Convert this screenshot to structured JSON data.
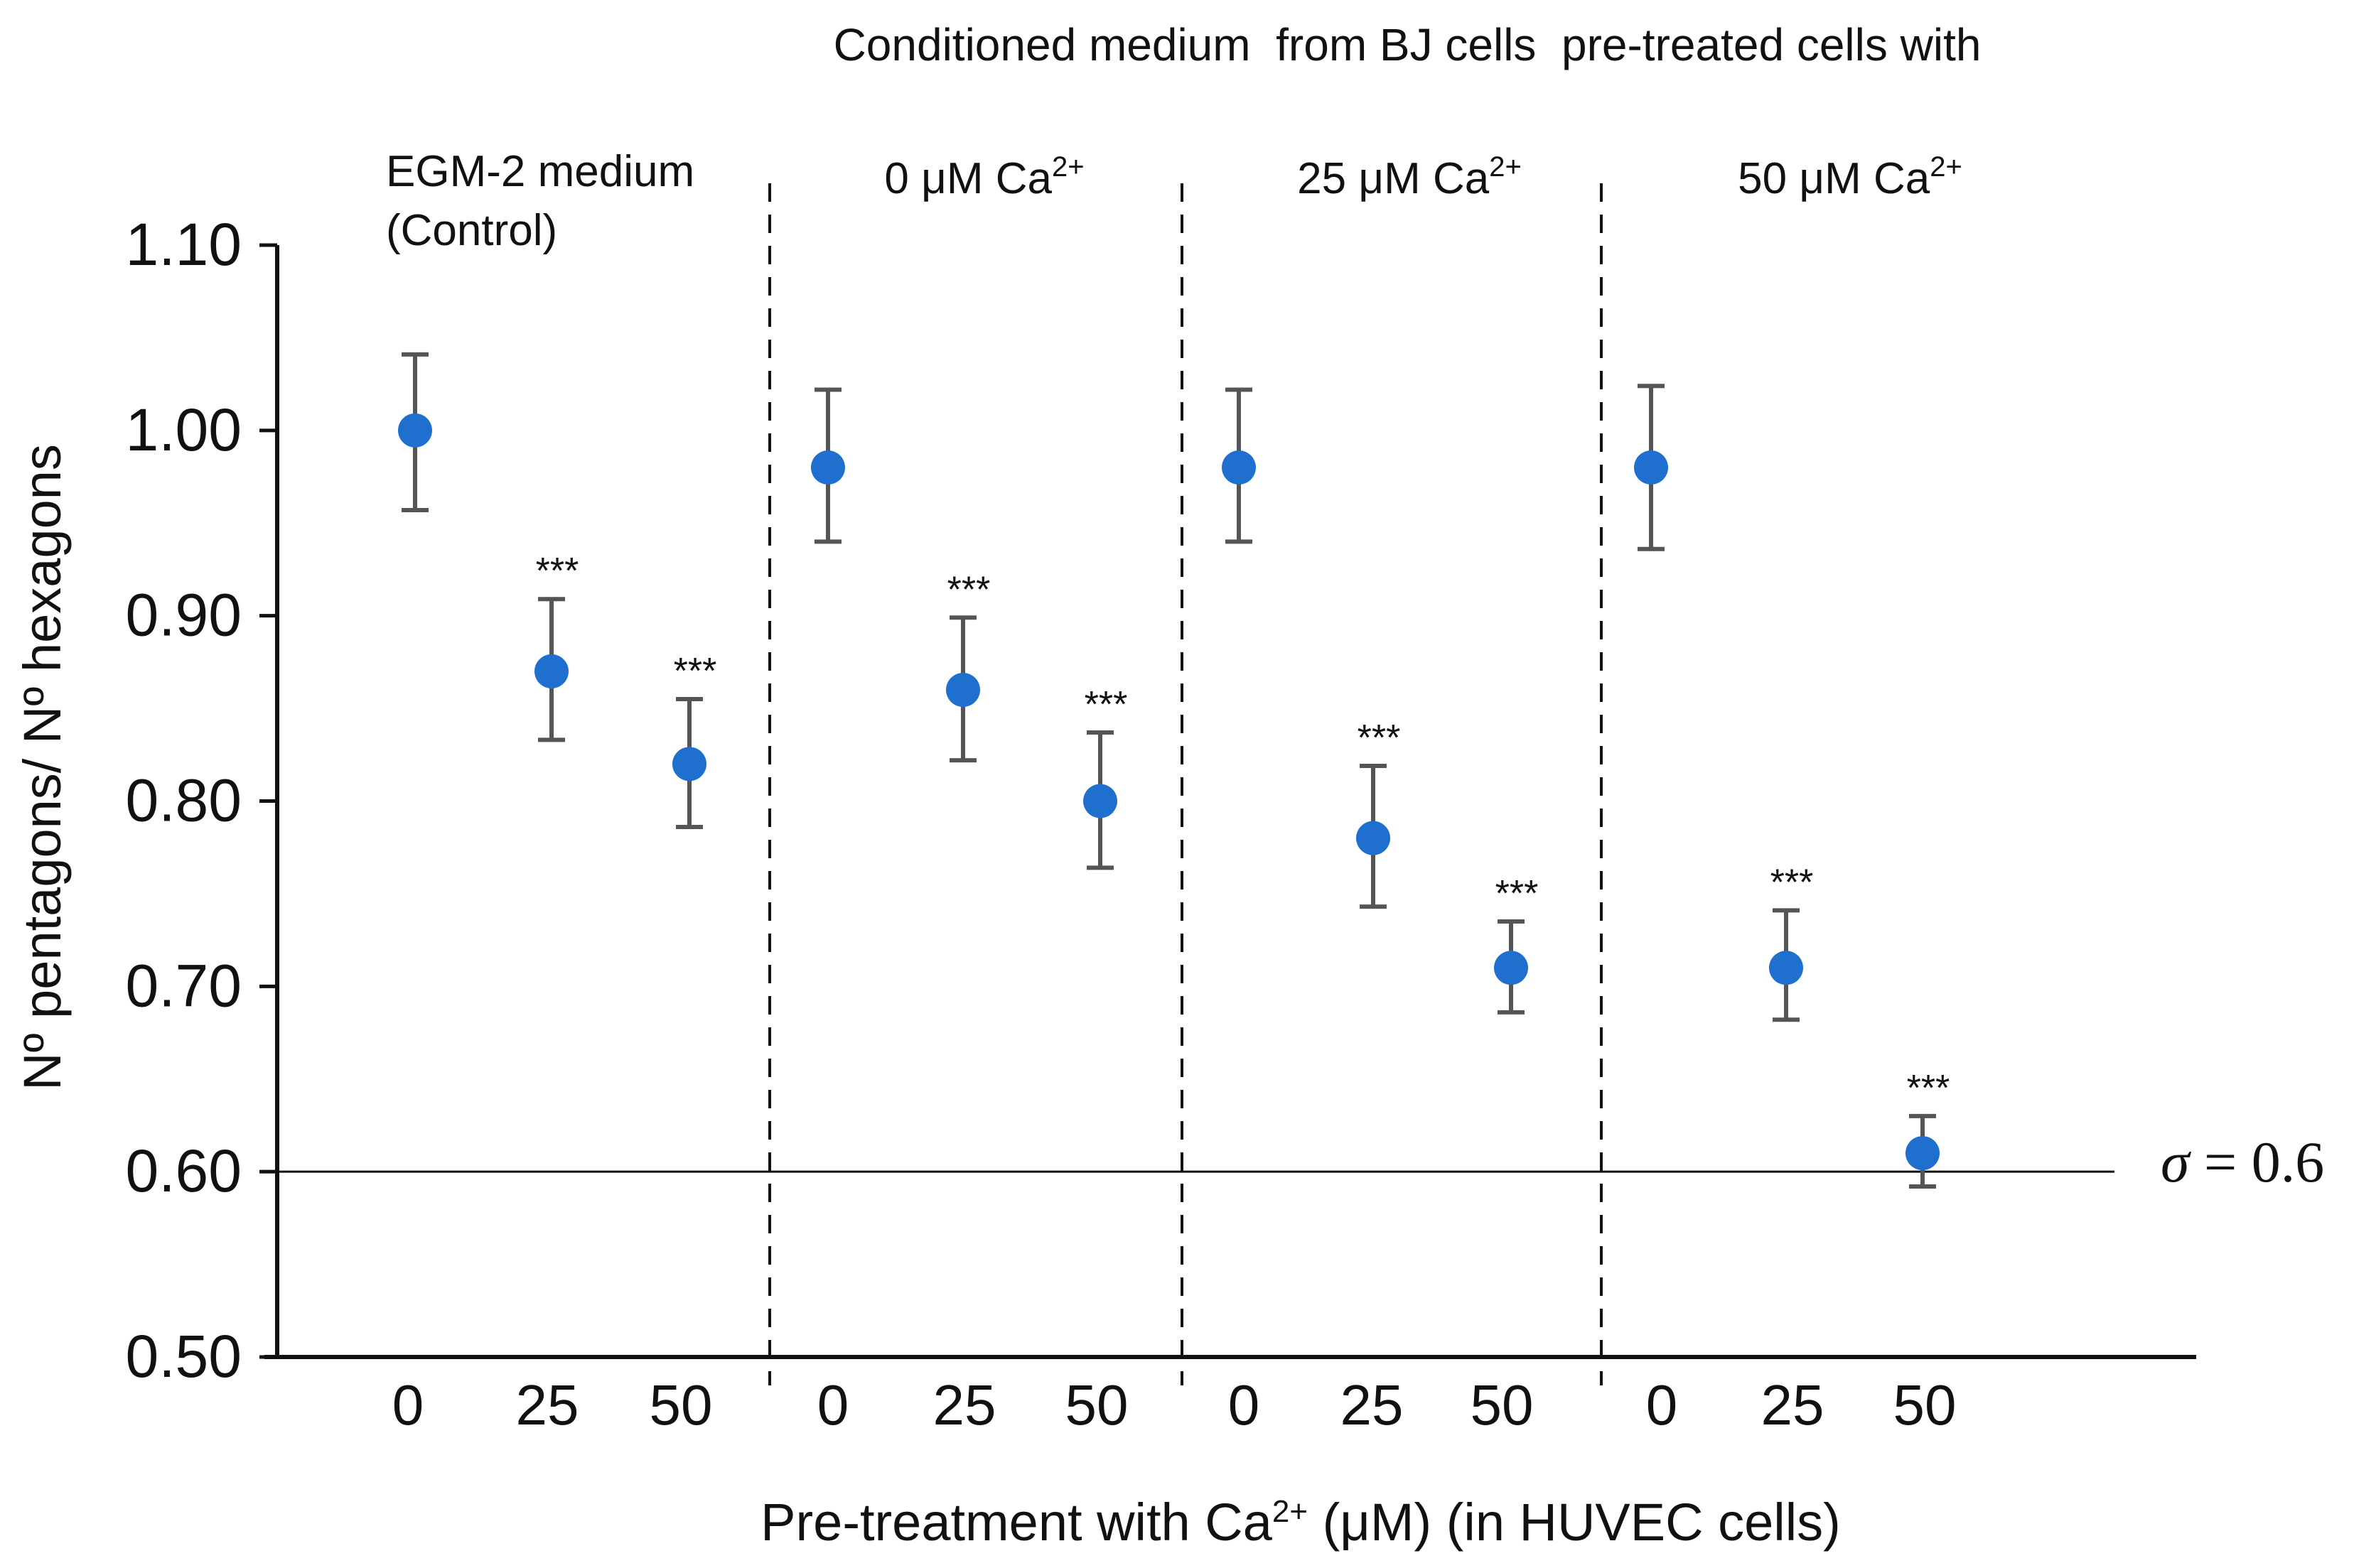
{
  "chart_data": {
    "type": "scatter",
    "title": "Conditioned medium  from BJ cells  pre-treated cells with",
    "xlabel_parts": [
      "Pre-treatment with Ca",
      "2+",
      " (μM) (in HUVEC cells)"
    ],
    "ylabel": "Nº pentagons/ Nº hexagons",
    "ylim": [
      0.5,
      1.1
    ],
    "yticks": [
      "0.50",
      "0.60",
      "0.70",
      "0.80",
      "0.90",
      "1.00",
      "1.10"
    ],
    "ytick_values": [
      0.5,
      0.6,
      0.7,
      0.8,
      0.9,
      1.0,
      1.1
    ],
    "reference_line": {
      "value": 0.6,
      "symbol": "σ",
      "label": " = 0.6"
    },
    "marker_color": "#1f6fcf",
    "errorbar_color": "#555555",
    "groups": [
      {
        "label_lines": [
          "EGM-2 medium",
          "(Control)"
        ],
        "label_main": "",
        "label_sup": "",
        "points": [
          {
            "x": "0",
            "y": 1.0,
            "err_low": 0.957,
            "err_high": 1.041,
            "sig": ""
          },
          {
            "x": "25",
            "y": 0.87,
            "err_low": 0.833,
            "err_high": 0.909,
            "sig": "***"
          },
          {
            "x": "50",
            "y": 0.82,
            "err_low": 0.786,
            "err_high": 0.855,
            "sig": "***"
          }
        ]
      },
      {
        "label_lines": [],
        "label_main": "0 μM  Ca",
        "label_sup": "2+",
        "points": [
          {
            "x": "0",
            "y": 0.98,
            "err_low": 0.94,
            "err_high": 1.022,
            "sig": ""
          },
          {
            "x": "25",
            "y": 0.86,
            "err_low": 0.822,
            "err_high": 0.899,
            "sig": "***"
          },
          {
            "x": "50",
            "y": 0.8,
            "err_low": 0.764,
            "err_high": 0.837,
            "sig": "***"
          }
        ]
      },
      {
        "label_lines": [],
        "label_main": "25 μM  Ca",
        "label_sup": "2+",
        "points": [
          {
            "x": "0",
            "y": 0.98,
            "err_low": 0.94,
            "err_high": 1.022,
            "sig": ""
          },
          {
            "x": "25",
            "y": 0.78,
            "err_low": 0.743,
            "err_high": 0.819,
            "sig": "***"
          },
          {
            "x": "50",
            "y": 0.71,
            "err_low": 0.686,
            "err_high": 0.735,
            "sig": "***"
          }
        ]
      },
      {
        "label_lines": [],
        "label_main": "50 μM  Ca",
        "label_sup": "2+",
        "points": [
          {
            "x": "0",
            "y": 0.98,
            "err_low": 0.936,
            "err_high": 1.024,
            "sig": ""
          },
          {
            "x": "25",
            "y": 0.71,
            "err_low": 0.682,
            "err_high": 0.741,
            "sig": "***"
          },
          {
            "x": "50",
            "y": 0.61,
            "err_low": 0.592,
            "err_high": 0.63,
            "sig": "***"
          }
        ]
      }
    ]
  }
}
